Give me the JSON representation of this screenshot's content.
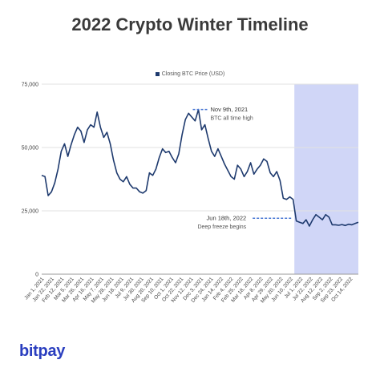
{
  "chart_data": {
    "type": "line",
    "title": "2022 Crypto Winter Timeline",
    "series": [
      {
        "name": "Closing BTC Price (USD)",
        "color": "#1e3a6e",
        "values": [
          39000,
          38500,
          31000,
          32500,
          36000,
          41500,
          48500,
          51500,
          46500,
          51000,
          55000,
          58000,
          56500,
          52000,
          57000,
          59000,
          58000,
          64000,
          58000,
          54000,
          56000,
          51500,
          45000,
          40000,
          37500,
          36500,
          38500,
          35500,
          34000,
          34000,
          32500,
          32000,
          33000,
          40000,
          39000,
          41500,
          46000,
          49500,
          48000,
          48500,
          46000,
          44000,
          47500,
          55000,
          61000,
          63500,
          62000,
          60500,
          65000,
          57000,
          59000,
          53500,
          48500,
          46500,
          49500,
          46500,
          43500,
          41000,
          38500,
          37500,
          43000,
          41500,
          38500,
          40500,
          44000,
          39500,
          41500,
          43000,
          45500,
          44500,
          40000,
          38500,
          40500,
          37000,
          30000,
          29500,
          30500,
          29500,
          21000,
          20500,
          20000,
          21500,
          19000,
          21500,
          23500,
          22500,
          21500,
          23500,
          22500,
          19500,
          19500,
          19300,
          19600,
          19200,
          19700,
          19500,
          20000,
          20500
        ]
      }
    ],
    "x_start": "2021-01-01",
    "x_end": "2022-10-31",
    "x_tick_labels": [
      "Jan 1, 2021",
      "Jan 22, 2021",
      "Feb 12, 2021",
      "Mar 5, 2021",
      "Mar 26, 2021",
      "Apr 16, 2021",
      "May 7, 2021",
      "May 28, 2021",
      "Jun 18, 2021",
      "Jul 9, 2021",
      "Jul 30, 2021",
      "Aug 20, 2021",
      "Sep 10, 2021",
      "Oct 1, 2021",
      "Oct 22, 2021",
      "Nov 12, 2021",
      "Dec 3, 2021",
      "Dec 24, 2021",
      "Jan 14, 2022",
      "Feb 4, 2022",
      "Feb 25, 2022",
      "Mar 18, 2022",
      "Apr 8, 2022",
      "Apr 29, 2022",
      "May 20, 2022",
      "Jun 10, 2022",
      "Jul 1, 2022",
      "Jul 22, 2022",
      "Aug 12, 2022",
      "Sep 2, 2022",
      "Sep 23, 2022",
      "Oct 14, 2022"
    ],
    "y_ticks": [
      0,
      25000,
      50000,
      75000
    ],
    "y_tick_labels": [
      "0",
      "25,000",
      "50,000",
      "75,000"
    ],
    "ylim": [
      0,
      75000
    ],
    "grid": true,
    "legend_position": "top",
    "shaded_region": {
      "start": "2022-06-18",
      "end": "2022-10-31",
      "color": "#d0d6f7"
    },
    "annotations": [
      {
        "title": "Nov 9th, 2021",
        "subtitle": "BTC all time high",
        "date": "2021-11-09",
        "value": 65000
      },
      {
        "title": "Jun 18th, 2022",
        "subtitle": "Deep freeze begins",
        "date": "2022-06-18",
        "value": 20500
      }
    ]
  },
  "brand": {
    "name": "bitpay",
    "color": "#2a3ebf"
  }
}
